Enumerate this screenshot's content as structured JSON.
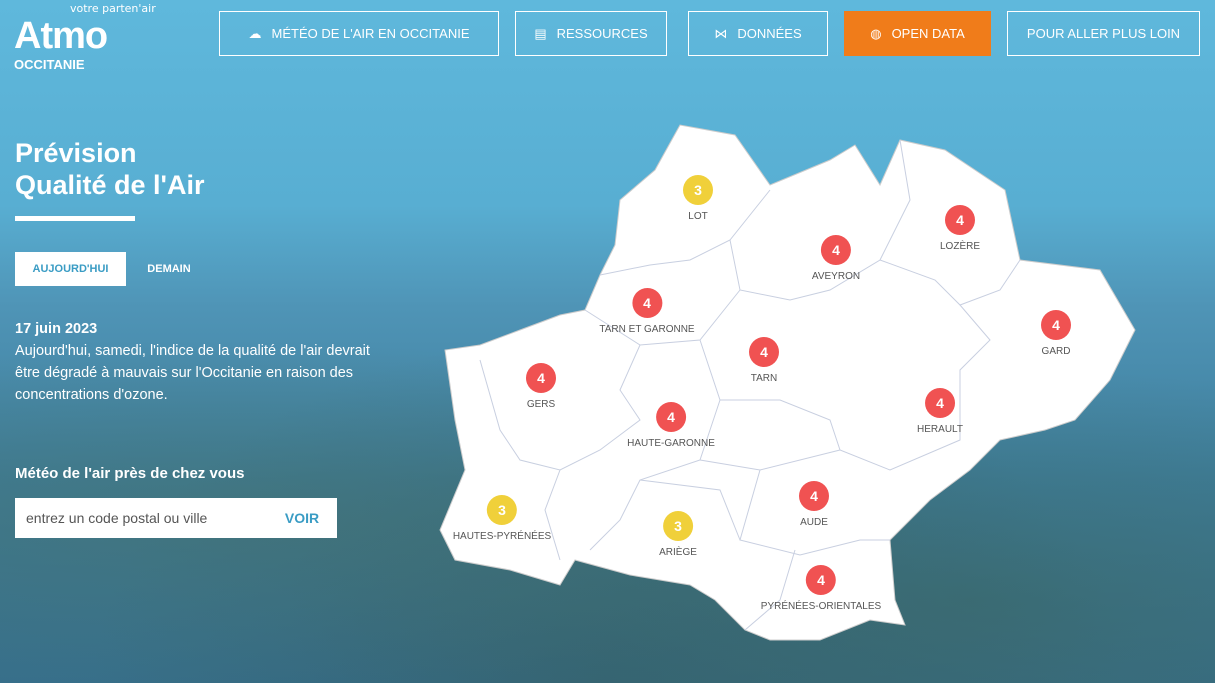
{
  "logo": {
    "name": "Atmo",
    "tagline": "votre parten'air",
    "region": "OCCITANIE"
  },
  "nav": [
    {
      "label": "MÉTÉO DE L'AIR EN OCCITANIE",
      "icon": "cloud-icon"
    },
    {
      "label": "RESSOURCES",
      "icon": "document-icon"
    },
    {
      "label": "DONNÉES",
      "icon": "network-icon"
    },
    {
      "label": "OPEN DATA",
      "icon": "globe-icon",
      "active": true
    },
    {
      "label": "POUR ALLER PLUS LOIN"
    }
  ],
  "title_line1": "Prévision",
  "title_line2": "Qualité de l'Air",
  "tabs": {
    "today": "AUJOURD'HUI",
    "tomorrow": "DEMAIN",
    "active": "today"
  },
  "date": "17 juin 2023",
  "description": "Aujourd'hui, samedi, l'indice de la qualité de l'air devrait être dégradé à mauvais sur l'Occitanie en raison des concentrations d'ozone.",
  "near": {
    "title": "Météo de l'air près de chez vous",
    "placeholder": "entrez un code postal ou ville",
    "button": "VOIR"
  },
  "colors": {
    "index3": "#f0d03a",
    "index4": "#f05252",
    "accent": "#f07c1a"
  },
  "departments": [
    {
      "name": "LOT",
      "index": "3"
    },
    {
      "name": "AVEYRON",
      "index": "4"
    },
    {
      "name": "LOZÈRE",
      "index": "4"
    },
    {
      "name": "TARN ET GARONNE",
      "index": "4"
    },
    {
      "name": "GARD",
      "index": "4"
    },
    {
      "name": "TARN",
      "index": "4"
    },
    {
      "name": "GERS",
      "index": "4"
    },
    {
      "name": "HERAULT",
      "index": "4"
    },
    {
      "name": "HAUTE-GARONNE",
      "index": "4"
    },
    {
      "name": "AUDE",
      "index": "4"
    },
    {
      "name": "HAUTES-PYRÉNÉES",
      "index": "3"
    },
    {
      "name": "ARIÈGE",
      "index": "3"
    },
    {
      "name": "PYRÉNÉES-ORIENTALES",
      "index": "4"
    }
  ]
}
